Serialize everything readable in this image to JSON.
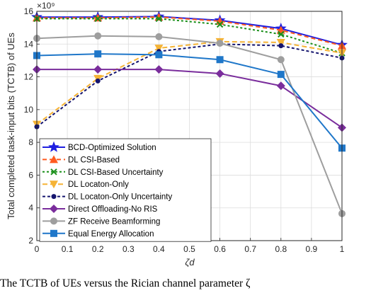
{
  "chart_data": {
    "type": "line",
    "x": [
      0,
      0.2,
      0.4,
      0.6,
      0.8,
      1
    ],
    "xticks": [
      0,
      0.1,
      0.2,
      0.3,
      0.4,
      0.5,
      0.6,
      0.7,
      0.8,
      0.9,
      1
    ],
    "xtick_labels": [
      "0",
      "0.1",
      "0.2",
      "0.3",
      "0.4",
      "0.5",
      "0.6",
      "0.7",
      "0.8",
      "0.9",
      "1"
    ],
    "yticks": [
      2,
      4,
      6,
      8,
      10,
      12,
      14,
      16
    ],
    "ytick_labels": [
      "2",
      "4",
      "6",
      "8",
      "10",
      "12",
      "14",
      "16"
    ],
    "xlabel": "ζd",
    "ylabel": "Total completed task-input bits (TCTB) of UEs",
    "y_exponent": "×10⁹",
    "xlim": [
      0,
      1
    ],
    "ylim": [
      2,
      16
    ],
    "grid": true,
    "legend_position": "bottom-left",
    "series": [
      {
        "name": "BCD-Optimized Solution",
        "color": "#1f1fe0",
        "marker": "star",
        "dash": "",
        "values": [
          15.65,
          15.65,
          15.68,
          15.45,
          14.95,
          13.95
        ]
      },
      {
        "name": "DL CSI-Based",
        "color": "#ff5a1f",
        "marker": "triangle-up",
        "dash": "6,4",
        "values": [
          15.6,
          15.6,
          15.65,
          15.4,
          14.85,
          13.9
        ]
      },
      {
        "name": "DL CSI-Based Uncertainty",
        "color": "#1a8f1a",
        "marker": "x",
        "dash": "3,3",
        "values": [
          15.55,
          15.55,
          15.55,
          15.2,
          14.6,
          13.45
        ]
      },
      {
        "name": "DL Locaton-Only",
        "color": "#f5b335",
        "marker": "triangle-down",
        "dash": "7,4",
        "values": [
          9.1,
          11.9,
          13.75,
          14.15,
          14.1,
          13.45
        ]
      },
      {
        "name": "DL Locaton-Only Uncertainty",
        "color": "#14146e",
        "marker": "dot",
        "dash": "4,3",
        "values": [
          8.95,
          11.75,
          13.55,
          14.0,
          13.9,
          13.15
        ]
      },
      {
        "name": "Direct Offloading-No RIS",
        "color": "#7a2d9c",
        "marker": "diamond",
        "dash": "",
        "values": [
          12.45,
          12.45,
          12.45,
          12.2,
          11.45,
          8.9
        ]
      },
      {
        "name": "ZF Receive Beamforming",
        "color": "#9e9e9e",
        "marker": "circle",
        "dash": "",
        "values": [
          14.35,
          14.5,
          14.45,
          14.05,
          13.05,
          3.65
        ]
      },
      {
        "name": "Equal Energy Allocation",
        "color": "#1f77c9",
        "marker": "square",
        "dash": "",
        "values": [
          13.3,
          13.4,
          13.35,
          13.05,
          12.15,
          7.65
        ]
      }
    ]
  },
  "caption": "The TCTB of UEs versus the Rician channel parameter ζ"
}
